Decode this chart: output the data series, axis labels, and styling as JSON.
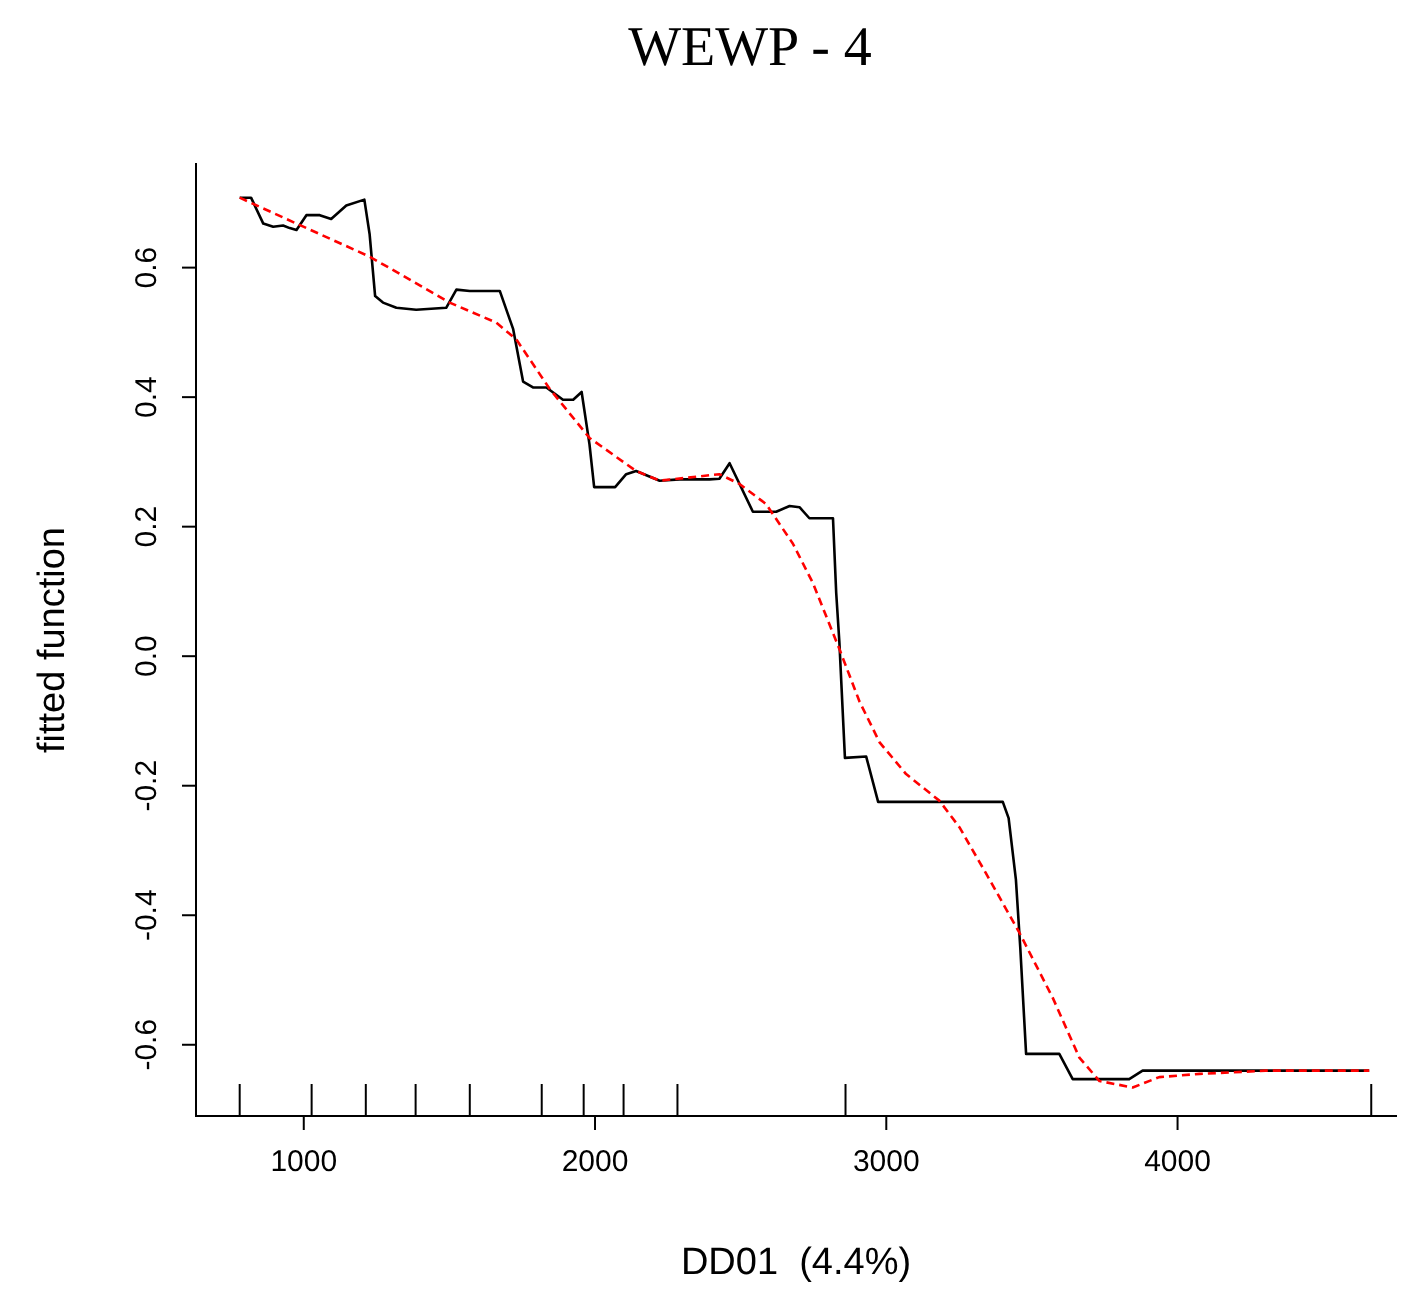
{
  "chart_data": {
    "type": "line",
    "title": "WEWP - 4",
    "xlabel": "DD01  (4.4%)",
    "ylabel": "fitted function",
    "marker": "none",
    "legend": false,
    "grid": false,
    "xlim": [
      630,
      4750
    ],
    "ylim": [
      -0.71,
      0.76
    ],
    "xticks": [
      1000,
      2000,
      3000,
      4000,
      {
        "value": 780,
        "label": null
      },
      {
        "value": 1027,
        "label": null
      },
      {
        "value": 1213,
        "label": null
      },
      {
        "value": 1384,
        "label": null
      },
      {
        "value": 1570,
        "label": null
      },
      {
        "value": 1817,
        "label": null
      },
      {
        "value": 1961,
        "label": null
      },
      {
        "value": 2098,
        "label": null
      },
      {
        "value": 2283,
        "label": null
      },
      {
        "value": 2860,
        "label": null
      },
      {
        "value": 4665,
        "label": null
      }
    ],
    "yticks": [
      {
        "value": -0.6,
        "label": "-0.6"
      },
      {
        "value": -0.4,
        "label": "-0.4"
      },
      {
        "value": -0.2,
        "label": "-0.2"
      },
      {
        "value": 0,
        "label": "0.0"
      },
      {
        "value": 0.2,
        "label": "0.2"
      },
      {
        "value": 0.4,
        "label": "0.4"
      },
      {
        "value": 0.6,
        "label": "0.6"
      }
    ],
    "series": [
      {
        "color": "#000000",
        "line_style": "solid",
        "x": [
          780,
          819,
          861,
          895,
          929,
          952,
          975,
          1009,
          1055,
          1094,
          1146,
          1208,
          1226,
          1245,
          1272,
          1318,
          1386,
          1489,
          1524,
          1570,
          1673,
          1719,
          1753,
          1787,
          1833,
          1890,
          1925,
          1954,
          1981,
          1997,
          2069,
          2107,
          2141,
          2222,
          2290,
          2393,
          2427,
          2462,
          2542,
          2622,
          2668,
          2702,
          2736,
          2817,
          2828,
          2839,
          2858,
          2931,
          2972,
          3400,
          3420,
          3445,
          3460,
          3480,
          3594,
          3640,
          3834,
          3880,
          4658
        ],
        "values": [
          0.708,
          0.708,
          0.668,
          0.663,
          0.665,
          0.661,
          0.658,
          0.681,
          0.681,
          0.675,
          0.696,
          0.705,
          0.652,
          0.556,
          0.546,
          0.538,
          0.535,
          0.538,
          0.566,
          0.564,
          0.564,
          0.505,
          0.424,
          0.415,
          0.415,
          0.396,
          0.396,
          0.408,
          0.327,
          0.261,
          0.261,
          0.281,
          0.286,
          0.271,
          0.273,
          0.273,
          0.274,
          0.298,
          0.223,
          0.223,
          0.232,
          0.23,
          0.213,
          0.213,
          0.098,
          0.021,
          -0.157,
          -0.155,
          -0.225,
          -0.225,
          -0.25,
          -0.345,
          -0.45,
          -0.614,
          -0.614,
          -0.653,
          -0.653,
          -0.64,
          -0.64
        ]
      },
      {
        "color": "#ff0000",
        "line_style": "dashed",
        "x": [
          780,
          975,
          1226,
          1501,
          1661,
          1730,
          1844,
          1981,
          2141,
          2222,
          2427,
          2496,
          2587,
          2679,
          2748,
          2839,
          2908,
          2977,
          3068,
          3182,
          3251,
          3342,
          3457,
          3572,
          3663,
          3732,
          3846,
          3937,
          4075,
          4303,
          4658
        ],
        "values": [
          0.708,
          0.668,
          0.617,
          0.546,
          0.515,
          0.489,
          0.413,
          0.337,
          0.286,
          0.271,
          0.281,
          0.266,
          0.235,
          0.174,
          0.113,
          0.011,
          -0.07,
          -0.133,
          -0.182,
          -0.223,
          -0.264,
          -0.335,
          -0.427,
          -0.528,
          -0.62,
          -0.656,
          -0.666,
          -0.65,
          -0.645,
          -0.64,
          -0.64
        ]
      }
    ]
  }
}
